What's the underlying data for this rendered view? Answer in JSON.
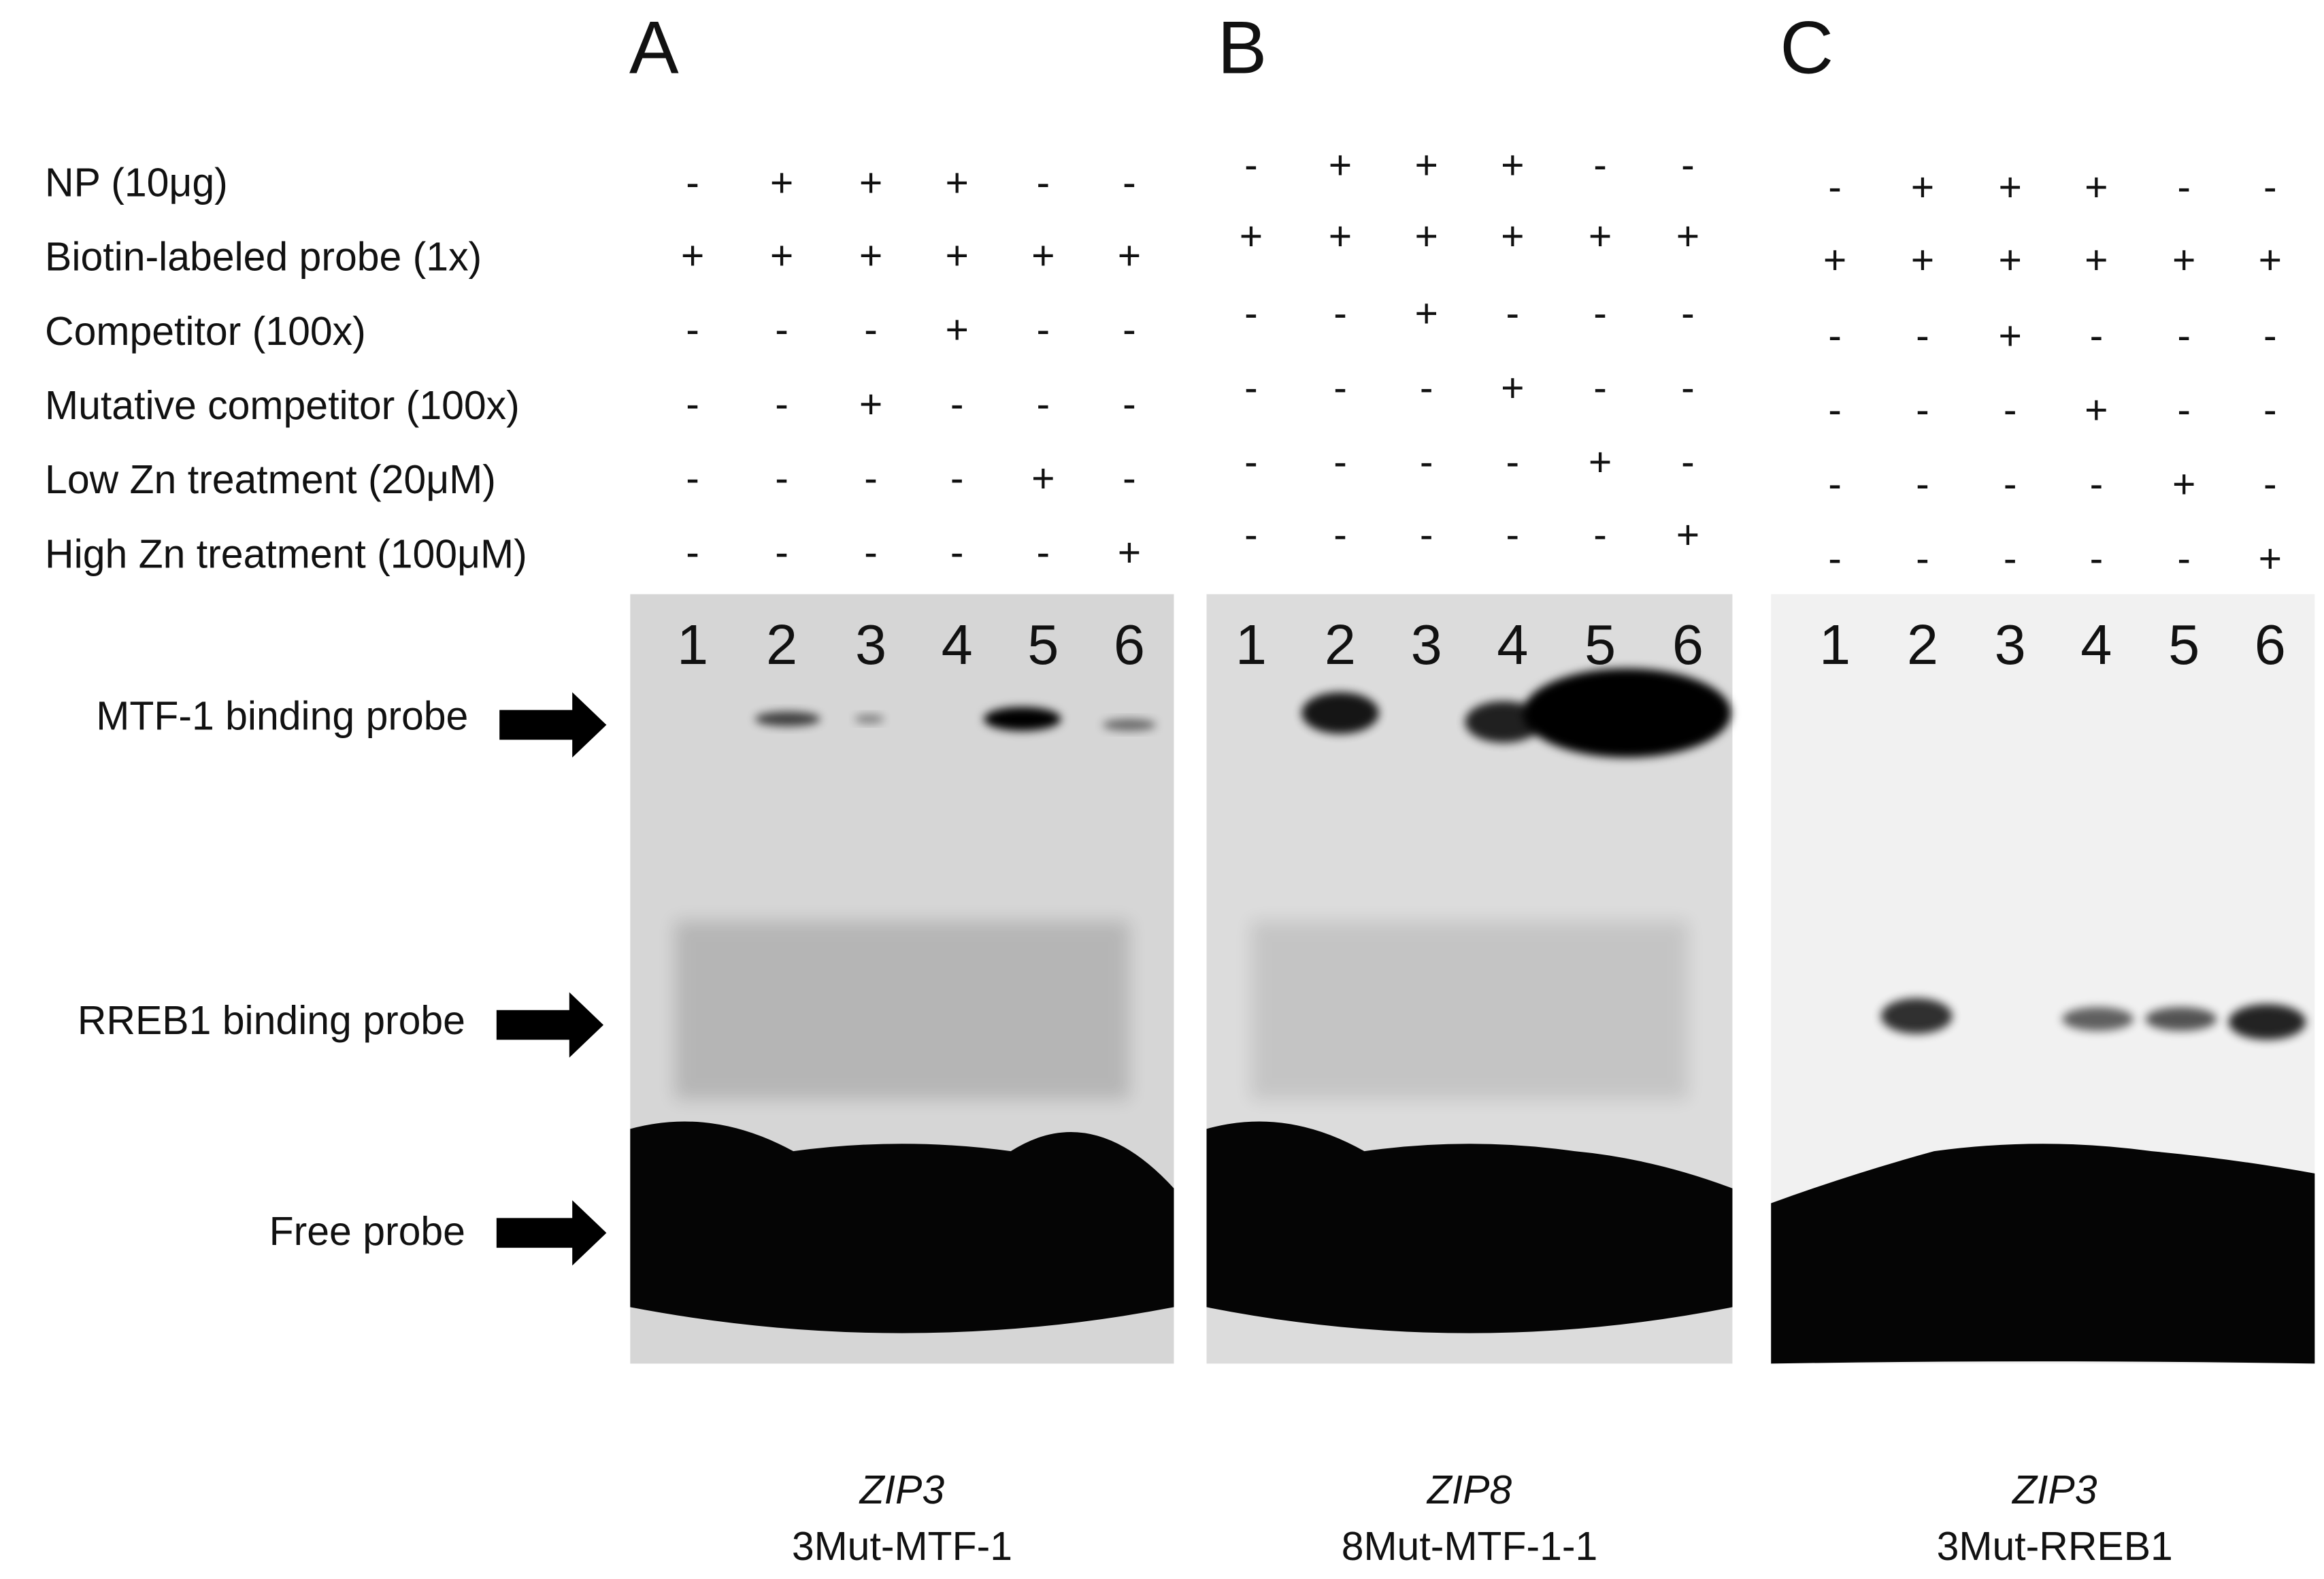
{
  "row_labels": [
    "NP (10μg)",
    "Biotin-labeled probe (1x)",
    "Competitor (100x)",
    "Mutative competitor (100x)",
    "Low Zn treatment (20μM)",
    "High Zn treatment (100μM)"
  ],
  "band_labels": [
    "MTF-1 binding probe",
    "RREB1 binding probe",
    "Free probe"
  ],
  "panels": [
    {
      "letter": "A",
      "lanes": [
        "1",
        "2",
        "3",
        "4",
        "5",
        "6"
      ],
      "signs": [
        [
          "-",
          "+",
          "+",
          "+",
          "-",
          "-"
        ],
        [
          "+",
          "+",
          "+",
          "+",
          "+",
          "+"
        ],
        [
          "-",
          "-",
          "-",
          "+",
          "-",
          "-"
        ],
        [
          "-",
          "-",
          "+",
          "-",
          "-",
          "-"
        ],
        [
          "-",
          "-",
          "-",
          "-",
          "+",
          "-"
        ],
        [
          "-",
          "-",
          "-",
          "-",
          "-",
          "+"
        ]
      ],
      "gene": "ZIP3",
      "construct": "3Mut-MTF-1"
    },
    {
      "letter": "B",
      "lanes": [
        "1",
        "2",
        "3",
        "4",
        "5",
        "6"
      ],
      "signs": [
        [
          "-",
          "+",
          "+",
          "+",
          "-",
          "-"
        ],
        [
          "+",
          "+",
          "+",
          "+",
          "+",
          "+"
        ],
        [
          "-",
          "-",
          "+",
          "-",
          "-",
          "-"
        ],
        [
          "-",
          "-",
          "-",
          "+",
          "-",
          "-"
        ],
        [
          "-",
          "-",
          "-",
          "-",
          "+",
          "-"
        ],
        [
          "-",
          "-",
          "-",
          "-",
          "-",
          "+"
        ]
      ],
      "gene": "ZIP8",
      "construct": "8Mut-MTF-1-1"
    },
    {
      "letter": "C",
      "lanes": [
        "1",
        "2",
        "3",
        "4",
        "5",
        "6"
      ],
      "signs": [
        [
          "-",
          "+",
          "+",
          "+",
          "-",
          "-"
        ],
        [
          "+",
          "+",
          "+",
          "+",
          "+",
          "+"
        ],
        [
          "-",
          "-",
          "+",
          "-",
          "-",
          "-"
        ],
        [
          "-",
          "-",
          "-",
          "+",
          "-",
          "-"
        ],
        [
          "-",
          "-",
          "-",
          "-",
          "+",
          "-"
        ],
        [
          "-",
          "-",
          "-",
          "-",
          "-",
          "+"
        ]
      ],
      "gene": "ZIP3",
      "construct": "3Mut-RREB1"
    }
  ]
}
